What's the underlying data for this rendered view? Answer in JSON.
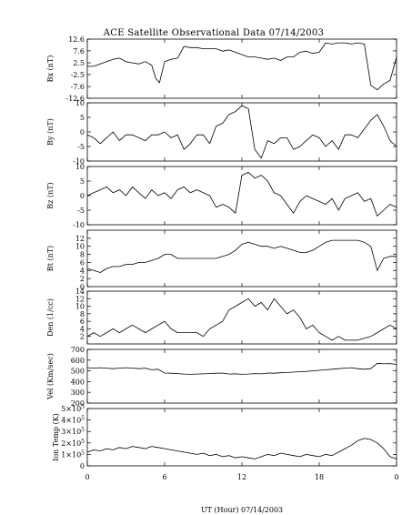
{
  "chart_data": {
    "title": "ACE Satellite Observational Data   07/14/2003",
    "xlabel": "UT (Hour)   07/14/2003",
    "x_ticks": [
      "0",
      "6",
      "12",
      "18",
      "0"
    ],
    "xlim": [
      0,
      24
    ],
    "grid": false,
    "panels": [
      {
        "type": "line",
        "ylabel": "Bx (nT)",
        "ylim": [
          -12.6,
          12.6
        ],
        "y_ticks": [
          {
            "v": 12.6,
            "l": "12.6"
          },
          {
            "v": 7.6,
            "l": "7.6"
          },
          {
            "v": 2.5,
            "l": "2.5"
          },
          {
            "v": -2.5,
            "l": "-2.5"
          },
          {
            "v": -7.6,
            "l": "-7.6"
          },
          {
            "v": -12.6,
            "l": "-12.6"
          }
        ],
        "x": [
          0,
          0.5,
          1,
          1.5,
          2,
          2.5,
          3,
          3.5,
          4,
          4.5,
          5,
          5.3,
          5.6,
          6,
          6.5,
          7,
          7.5,
          8,
          8.5,
          9,
          9.5,
          10,
          10.5,
          11,
          11.5,
          12,
          12.5,
          13,
          13.5,
          14,
          14.5,
          15,
          15.5,
          16,
          16.5,
          17,
          17.5,
          18,
          18.5,
          19,
          19.5,
          20,
          20.5,
          21,
          21.5,
          22,
          22.5,
          23,
          23.5,
          24
        ],
        "y": [
          1,
          1,
          2,
          3,
          4,
          4.5,
          3,
          2.5,
          2,
          3,
          1.5,
          -4,
          -6,
          3,
          4,
          4.5,
          9.5,
          9,
          9,
          8.5,
          8.5,
          8.5,
          7.5,
          8,
          7,
          6,
          5,
          5,
          4.5,
          4,
          4.5,
          3.5,
          5,
          5,
          7,
          7.5,
          6.5,
          7,
          11,
          10.5,
          11,
          11,
          10.5,
          11,
          10.5,
          -7,
          -9,
          -6.5,
          -5,
          5
        ]
      },
      {
        "type": "line",
        "ylabel": "By (nT)",
        "ylim": [
          -10,
          10
        ],
        "y_ticks": [
          {
            "v": 10,
            "l": "10"
          },
          {
            "v": 5,
            "l": "5"
          },
          {
            "v": 0,
            "l": "0"
          },
          {
            "v": -5,
            "l": "-5"
          },
          {
            "v": -10,
            "l": "-10"
          }
        ],
        "x": [
          0,
          0.5,
          1,
          1.5,
          2,
          2.5,
          3,
          3.5,
          4,
          4.5,
          5,
          5.5,
          6,
          6.5,
          7,
          7.5,
          8,
          8.5,
          9,
          9.5,
          10,
          10.5,
          11,
          11.5,
          12,
          12.5,
          13,
          13.5,
          14,
          14.5,
          15,
          15.5,
          16,
          16.5,
          17,
          17.5,
          18,
          18.5,
          19,
          19.5,
          20,
          20.5,
          21,
          21.5,
          22,
          22.5,
          23,
          23.5,
          24
        ],
        "y": [
          -1,
          -2,
          -4,
          -2,
          0,
          -3,
          -1,
          -1,
          -2,
          -3,
          -1,
          -1,
          0,
          -2,
          -1,
          -6,
          -4,
          -1,
          -1,
          -4,
          2,
          3,
          6,
          7,
          9,
          8,
          -6,
          -9,
          -3,
          -4,
          -2,
          -2,
          -6,
          -5,
          -3,
          -1,
          -2,
          -5,
          -3,
          -6,
          -1,
          -1,
          -2,
          1,
          4,
          6,
          2,
          -3,
          -5
        ]
      },
      {
        "type": "line",
        "ylabel": "Bz (nT)",
        "ylim": [
          -10,
          10
        ],
        "y_ticks": [
          {
            "v": 10,
            "l": "10"
          },
          {
            "v": 5,
            "l": "5"
          },
          {
            "v": 0,
            "l": "0"
          },
          {
            "v": -5,
            "l": "-5"
          },
          {
            "v": -10,
            "l": "-10"
          }
        ],
        "x": [
          0,
          0.5,
          1,
          1.5,
          2,
          2.5,
          3,
          3.5,
          4,
          4.5,
          5,
          5.5,
          6,
          6.5,
          7,
          7.5,
          8,
          8.5,
          9,
          9.5,
          10,
          10.5,
          11,
          11.5,
          12,
          12.5,
          13,
          13.5,
          14,
          14.5,
          15,
          15.5,
          16,
          16.5,
          17,
          17.5,
          18,
          18.5,
          19,
          19.5,
          20,
          20.5,
          21,
          21.5,
          22,
          22.5,
          23,
          23.5,
          24
        ],
        "y": [
          0,
          1,
          2,
          3,
          1,
          2,
          0,
          3,
          1,
          -1,
          2,
          0,
          1,
          -1,
          2,
          3,
          1,
          2,
          1,
          0,
          -4,
          -3,
          -4,
          -6,
          7,
          8,
          6,
          7,
          5,
          1,
          0,
          -3,
          -6,
          -2,
          0,
          -1,
          -2,
          -3,
          -1,
          -5,
          -1,
          0,
          1,
          -2,
          -1,
          -7,
          -5,
          -3,
          -4
        ]
      },
      {
        "type": "line",
        "ylabel": "Bt (nT)",
        "ylim": [
          0,
          14
        ],
        "y_ticks": [
          {
            "v": 12,
            "l": "12"
          },
          {
            "v": 10,
            "l": "10"
          },
          {
            "v": 8,
            "l": "8"
          },
          {
            "v": 6,
            "l": "6"
          },
          {
            "v": 4,
            "l": "4"
          },
          {
            "v": 2,
            "l": "2"
          },
          {
            "v": 0,
            "l": "0"
          }
        ],
        "x": [
          0,
          0.5,
          1,
          1.5,
          2,
          2.5,
          3,
          3.5,
          4,
          4.5,
          5,
          5.5,
          6,
          6.5,
          7,
          7.5,
          8,
          8.5,
          9,
          9.5,
          10,
          10.5,
          11,
          11.5,
          12,
          12.5,
          13,
          13.5,
          14,
          14.5,
          15,
          15.5,
          16,
          16.5,
          17,
          17.5,
          18,
          18.5,
          19,
          19.5,
          20,
          20.5,
          21,
          21.5,
          22,
          22.5,
          23,
          23.5,
          24
        ],
        "y": [
          4.5,
          4,
          3.5,
          4.5,
          5,
          5,
          5.5,
          5.5,
          6,
          6,
          6.5,
          7,
          8,
          8,
          7,
          7,
          7,
          7,
          7,
          7,
          7,
          7.5,
          8,
          9,
          10.5,
          11,
          10.5,
          10,
          10,
          9.5,
          10,
          9.5,
          9,
          8.5,
          8.5,
          9,
          10,
          11,
          11.5,
          11.5,
          11.5,
          11.5,
          11.5,
          11,
          10,
          4,
          7,
          7.5,
          7.5
        ]
      },
      {
        "type": "line",
        "ylabel": "Den (1/cc)",
        "ylim": [
          0,
          14
        ],
        "y_ticks": [
          {
            "v": 14,
            "l": "14"
          },
          {
            "v": 12,
            "l": "12"
          },
          {
            "v": 10,
            "l": "10"
          },
          {
            "v": 8,
            "l": "8"
          },
          {
            "v": 6,
            "l": "6"
          },
          {
            "v": 4,
            "l": "4"
          },
          {
            "v": 2,
            "l": "2"
          }
        ],
        "x": [
          0,
          0.5,
          1,
          1.5,
          2,
          2.5,
          3,
          3.5,
          4,
          4.5,
          5,
          5.5,
          6,
          6.5,
          7,
          7.5,
          8,
          8.5,
          9,
          9.5,
          10,
          10.5,
          11,
          11.5,
          12,
          12.5,
          13,
          13.5,
          14,
          14.5,
          15,
          15.5,
          16,
          16.5,
          17,
          17.5,
          18,
          18.5,
          19,
          19.5,
          20,
          20.5,
          21,
          21.5,
          22,
          22.5,
          23,
          23.5,
          24
        ],
        "y": [
          2,
          3,
          2,
          3,
          4,
          3,
          4,
          5,
          4,
          3,
          4,
          5,
          6,
          4,
          3,
          3,
          3,
          3,
          2,
          4,
          5,
          6,
          9,
          10,
          11,
          12,
          10,
          11,
          9,
          12,
          10,
          8,
          9,
          7,
          4,
          5,
          3,
          2,
          1,
          2,
          1,
          1,
          1,
          1.5,
          2,
          3,
          4,
          5,
          4
        ]
      },
      {
        "type": "line",
        "ylabel": "Vel (Km/sec)",
        "ylim": [
          200,
          700
        ],
        "y_ticks": [
          {
            "v": 700,
            "l": "700"
          },
          {
            "v": 600,
            "l": "600"
          },
          {
            "v": 500,
            "l": "500"
          },
          {
            "v": 400,
            "l": "400"
          },
          {
            "v": 300,
            "l": "300"
          },
          {
            "v": 200,
            "l": "200"
          }
        ],
        "x": [
          0,
          0.5,
          1,
          1.5,
          2,
          2.5,
          3,
          3.5,
          4,
          4.5,
          5,
          5.5,
          6,
          6.5,
          7,
          7.5,
          8,
          8.5,
          9,
          9.5,
          10,
          10.5,
          11,
          11.5,
          12,
          12.5,
          13,
          13.5,
          14,
          14.5,
          15,
          15.5,
          16,
          16.5,
          17,
          17.5,
          18,
          18.5,
          19,
          19.5,
          20,
          20.5,
          21,
          21.5,
          22,
          22.5,
          23,
          23.5,
          24
        ],
        "y": [
          530,
          525,
          530,
          525,
          520,
          525,
          530,
          525,
          520,
          525,
          510,
          515,
          480,
          478,
          475,
          470,
          468,
          470,
          472,
          475,
          478,
          480,
          470,
          472,
          468,
          470,
          475,
          472,
          480,
          478,
          482,
          485,
          488,
          492,
          495,
          500,
          505,
          510,
          515,
          520,
          525,
          530,
          520,
          515,
          520,
          570,
          565,
          568,
          560
        ]
      },
      {
        "type": "line",
        "ylabel": "Ion Temp (K)",
        "ylim": [
          0,
          500000
        ],
        "y_ticks": [
          {
            "v": 500000,
            "m": "5",
            "l": "5×10⁵"
          },
          {
            "v": 400000,
            "m": "4",
            "l": "4×10⁵"
          },
          {
            "v": 300000,
            "m": "3",
            "l": "3×10⁵"
          },
          {
            "v": 200000,
            "m": "2",
            "l": "2×10⁵"
          },
          {
            "v": 100000,
            "m": "1",
            "l": "1×10⁵"
          },
          {
            "v": 0,
            "m": "0",
            "l": "0"
          }
        ],
        "x": [
          0,
          0.5,
          1,
          1.5,
          2,
          2.5,
          3,
          3.5,
          4,
          4.5,
          5,
          5.5,
          6,
          6.5,
          7,
          7.5,
          8,
          8.5,
          9,
          9.5,
          10,
          10.5,
          11,
          11.5,
          12,
          12.5,
          13,
          13.5,
          14,
          14.5,
          15,
          15.5,
          16,
          16.5,
          17,
          17.5,
          18,
          18.5,
          19,
          19.5,
          20,
          20.5,
          21,
          21.5,
          22,
          22.5,
          23,
          23.5,
          24
        ],
        "y": [
          120000,
          140000,
          130000,
          150000,
          140000,
          160000,
          150000,
          170000,
          160000,
          150000,
          170000,
          160000,
          150000,
          140000,
          130000,
          120000,
          110000,
          100000,
          110000,
          90000,
          100000,
          80000,
          90000,
          70000,
          80000,
          70000,
          60000,
          80000,
          100000,
          90000,
          110000,
          100000,
          90000,
          80000,
          100000,
          90000,
          80000,
          100000,
          90000,
          120000,
          150000,
          180000,
          220000,
          240000,
          230000,
          200000,
          150000,
          80000,
          60000
        ]
      }
    ]
  }
}
